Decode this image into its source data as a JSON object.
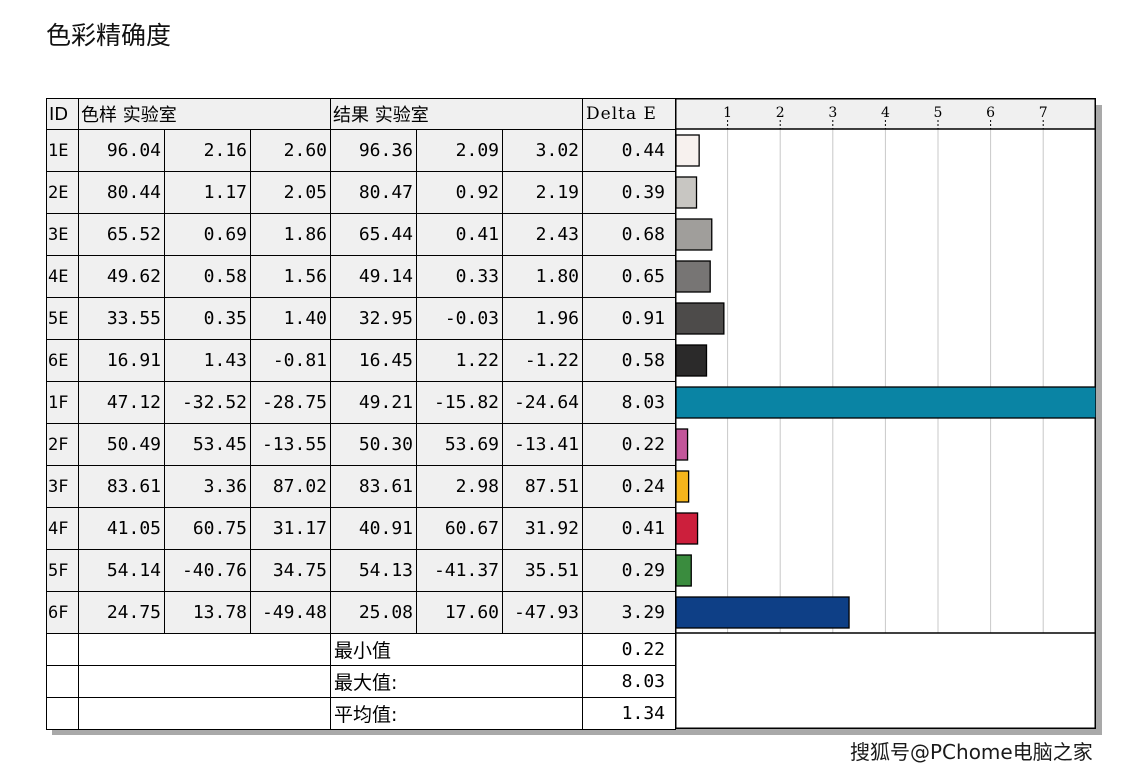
{
  "title": "色彩精确度",
  "watermark": "搜狐号@PChome电脑之家",
  "table": {
    "header": {
      "id": "ID",
      "reference": "色样 实验室",
      "result": "结果 实验室",
      "delta": "Delta E"
    },
    "rows": [
      {
        "id": "1E",
        "ref": [
          "96.04",
          "2.16",
          "2.60"
        ],
        "res": [
          "96.36",
          "2.09",
          "3.02"
        ],
        "de": "0.44"
      },
      {
        "id": "2E",
        "ref": [
          "80.44",
          "1.17",
          "2.05"
        ],
        "res": [
          "80.47",
          "0.92",
          "2.19"
        ],
        "de": "0.39"
      },
      {
        "id": "3E",
        "ref": [
          "65.52",
          "0.69",
          "1.86"
        ],
        "res": [
          "65.44",
          "0.41",
          "2.43"
        ],
        "de": "0.68"
      },
      {
        "id": "4E",
        "ref": [
          "49.62",
          "0.58",
          "1.56"
        ],
        "res": [
          "49.14",
          "0.33",
          "1.80"
        ],
        "de": "0.65"
      },
      {
        "id": "5E",
        "ref": [
          "33.55",
          "0.35",
          "1.40"
        ],
        "res": [
          "32.95",
          "-0.03",
          "1.96"
        ],
        "de": "0.91"
      },
      {
        "id": "6E",
        "ref": [
          "16.91",
          "1.43",
          "-0.81"
        ],
        "res": [
          "16.45",
          "1.22",
          "-1.22"
        ],
        "de": "0.58"
      },
      {
        "id": "1F",
        "ref": [
          "47.12",
          "-32.52",
          "-28.75"
        ],
        "res": [
          "49.21",
          "-15.82",
          "-24.64"
        ],
        "de": "8.03"
      },
      {
        "id": "2F",
        "ref": [
          "50.49",
          "53.45",
          "-13.55"
        ],
        "res": [
          "50.30",
          "53.69",
          "-13.41"
        ],
        "de": "0.22"
      },
      {
        "id": "3F",
        "ref": [
          "83.61",
          "3.36",
          "87.02"
        ],
        "res": [
          "83.61",
          "2.98",
          "87.51"
        ],
        "de": "0.24"
      },
      {
        "id": "4F",
        "ref": [
          "41.05",
          "60.75",
          "31.17"
        ],
        "res": [
          "40.91",
          "60.67",
          "31.92"
        ],
        "de": "0.41"
      },
      {
        "id": "5F",
        "ref": [
          "54.14",
          "-40.76",
          "34.75"
        ],
        "res": [
          "54.13",
          "-41.37",
          "35.51"
        ],
        "de": "0.29"
      },
      {
        "id": "6F",
        "ref": [
          "24.75",
          "13.78",
          "-49.48"
        ],
        "res": [
          "25.08",
          "17.60",
          "-47.93"
        ],
        "de": "3.29"
      }
    ],
    "summary": [
      {
        "label": "最小值",
        "value": "0.22"
      },
      {
        "label": "最大值:",
        "value": "8.03"
      },
      {
        "label": "平均值:",
        "value": "1.34"
      }
    ]
  },
  "chart_data": {
    "type": "bar",
    "orientation": "horizontal",
    "categories": [
      "1E",
      "2E",
      "3E",
      "4E",
      "5E",
      "6E",
      "1F",
      "2F",
      "3F",
      "4F",
      "5F",
      "6F"
    ],
    "values": [
      0.44,
      0.39,
      0.68,
      0.65,
      0.91,
      0.58,
      8.03,
      0.22,
      0.24,
      0.41,
      0.29,
      3.29
    ],
    "bar_colors": [
      "#f7f1ee",
      "#c8c6c2",
      "#a09e9b",
      "#777574",
      "#4d4b4a",
      "#2b2a2a",
      "#0a84a4",
      "#c2569a",
      "#f5b51c",
      "#cc1f3c",
      "#3a8c3e",
      "#0e3f86"
    ],
    "xticks": [
      "1",
      "2",
      "3",
      "4",
      "5",
      "6",
      "7"
    ],
    "xlim": [
      0,
      8
    ],
    "grid": true
  }
}
